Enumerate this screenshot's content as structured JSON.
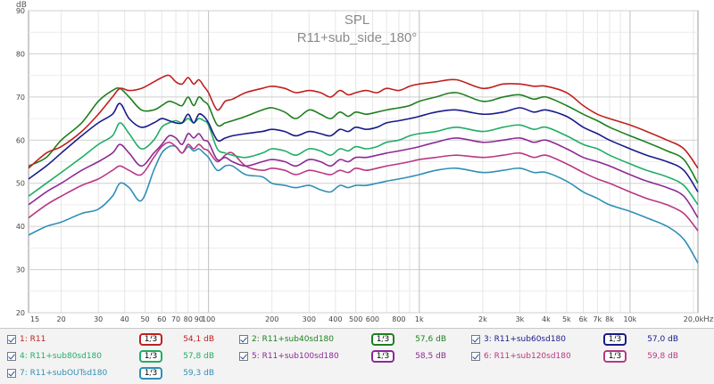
{
  "chart_data": {
    "type": "line",
    "title": "SPL",
    "subtitle": "R11+sub_side_180°",
    "ylabel": "dB",
    "xlabel": "Hz",
    "x_scale": "log",
    "xlim": [
      14,
      21000
    ],
    "ylim": [
      20,
      90
    ],
    "y_ticks": [
      20,
      30,
      40,
      50,
      60,
      70,
      80,
      90
    ],
    "x_ticks": [
      {
        "v": 15,
        "t": "15"
      },
      {
        "v": 20,
        "t": "20"
      },
      {
        "v": 30,
        "t": "30"
      },
      {
        "v": 40,
        "t": "40"
      },
      {
        "v": 50,
        "t": "50"
      },
      {
        "v": 60,
        "t": "60"
      },
      {
        "v": 70,
        "t": "70"
      },
      {
        "v": 80,
        "t": "80"
      },
      {
        "v": 90,
        "t": "90"
      },
      {
        "v": 100,
        "t": "100"
      },
      {
        "v": 200,
        "t": "200"
      },
      {
        "v": 300,
        "t": "300"
      },
      {
        "v": 400,
        "t": "400"
      },
      {
        "v": 500,
        "t": "500"
      },
      {
        "v": 600,
        "t": "600"
      },
      {
        "v": 800,
        "t": "800"
      },
      {
        "v": 1000,
        "t": "1k"
      },
      {
        "v": 2000,
        "t": "2k"
      },
      {
        "v": 3000,
        "t": "3k"
      },
      {
        "v": 4000,
        "t": "4k"
      },
      {
        "v": 5000,
        "t": "5k"
      },
      {
        "v": 6000,
        "t": "6k"
      },
      {
        "v": 7000,
        "t": "7k"
      },
      {
        "v": 8000,
        "t": "8k"
      },
      {
        "v": 10000,
        "t": "10k"
      },
      {
        "v": 20000,
        "t": "20,0k"
      }
    ],
    "grid": true,
    "x": [
      14,
      17,
      20,
      25,
      30,
      35,
      38,
      42,
      48,
      55,
      60,
      65,
      70,
      75,
      80,
      85,
      90,
      95,
      100,
      110,
      120,
      130,
      150,
      180,
      200,
      230,
      260,
      300,
      340,
      380,
      420,
      460,
      500,
      560,
      630,
      700,
      800,
      900,
      1000,
      1200,
      1500,
      2000,
      2500,
      3000,
      3500,
      4000,
      5000,
      6000,
      7000,
      8000,
      10000,
      12000,
      15000,
      18000,
      21000
    ],
    "series": [
      {
        "name": "1: R11",
        "color": "#c0201e",
        "level": "54,1 dB",
        "values": [
          53.5,
          57,
          58.5,
          62,
          66,
          70,
          72,
          71.5,
          72,
          73.5,
          74.5,
          75,
          73.5,
          73,
          74.5,
          73,
          74,
          72.5,
          71,
          67,
          69,
          69.5,
          71,
          72,
          72.5,
          72,
          71,
          71.5,
          71,
          70,
          71.5,
          70.5,
          71,
          71.5,
          71,
          72,
          71.5,
          72.5,
          73,
          73.5,
          74,
          72,
          73,
          73,
          72.5,
          72.5,
          71,
          68,
          66,
          65,
          63.5,
          62,
          60,
          58,
          53.5
        ]
      },
      {
        "name": "2: R11+sub40sd180",
        "color": "#1f7f1f",
        "level": "57,6 dB",
        "values": [
          54,
          56,
          60,
          64,
          69,
          71.5,
          72,
          70,
          67,
          67,
          68,
          69,
          68.5,
          68,
          70,
          68,
          70,
          69,
          68,
          63.5,
          64,
          64.5,
          65.5,
          67,
          67.5,
          66.5,
          65,
          67,
          66,
          65,
          66.5,
          65.5,
          66.5,
          66,
          66.5,
          67,
          67.5,
          68,
          69,
          70,
          71,
          69,
          70,
          70.5,
          69.5,
          70,
          68,
          66,
          64.5,
          63,
          61,
          59.5,
          57.5,
          55.5,
          50
        ]
      },
      {
        "name": "3: R11+sub60sd180",
        "color": "#1a1a8c",
        "level": "57,0 dB",
        "values": [
          51,
          54,
          57,
          61,
          64,
          66,
          68.5,
          65,
          63,
          64,
          65,
          64.5,
          64,
          64,
          66,
          64,
          66,
          65.5,
          64,
          60,
          60.5,
          61,
          61.5,
          62,
          62.5,
          62,
          61,
          62,
          61.5,
          61,
          62.5,
          62,
          63,
          62.5,
          63,
          64,
          64.5,
          65,
          65.5,
          66.5,
          67,
          66,
          66.5,
          67.5,
          66.5,
          67,
          65.5,
          63,
          61.5,
          60,
          58,
          56.5,
          55,
          53,
          48
        ]
      },
      {
        "name": "4: R11+sub80sd180",
        "color": "#1fae66",
        "level": "57,8 dB",
        "values": [
          47,
          50,
          52.5,
          56,
          59,
          61,
          64,
          61.5,
          58,
          60,
          63,
          64,
          64.5,
          64,
          65,
          64,
          65,
          64.5,
          63.5,
          58,
          57,
          56.5,
          56,
          57,
          58,
          57.5,
          56.5,
          58,
          57.5,
          56.5,
          58,
          57.5,
          58.5,
          58,
          58.5,
          59.5,
          60,
          61,
          61.5,
          62,
          63,
          62,
          63,
          63.5,
          62.5,
          63,
          61,
          59,
          58,
          56.5,
          54.5,
          53,
          51.5,
          49.5,
          45
        ]
      },
      {
        "name": "5: R11+sub100sd180",
        "color": "#8c2a96",
        "level": "58,5 dB",
        "values": [
          45,
          48,
          50,
          53,
          55,
          57,
          59,
          57,
          54,
          57,
          59,
          61,
          60.5,
          59,
          61.5,
          60.5,
          61.5,
          60,
          59.5,
          55.5,
          56,
          55,
          54,
          55,
          55.5,
          55,
          54,
          55.5,
          55,
          54,
          55.5,
          55,
          56,
          56,
          56.5,
          57,
          57.5,
          58,
          58.5,
          59.5,
          60.5,
          59.5,
          60,
          60.5,
          59.5,
          60,
          58,
          56,
          55,
          54,
          52,
          50.5,
          49,
          47,
          42
        ]
      },
      {
        "name": "6: R11+sub120sd180",
        "color": "#b83882",
        "level": "59,8 dB",
        "values": [
          42,
          45,
          47,
          49.5,
          51,
          53,
          54,
          53,
          52,
          56,
          58.5,
          59.5,
          58.5,
          57,
          59,
          58,
          59,
          58,
          57.5,
          55,
          56.5,
          57,
          54,
          53,
          53.5,
          53,
          52,
          53,
          52.5,
          52,
          53,
          52.5,
          53.5,
          53,
          53.5,
          54,
          54.5,
          55,
          55.5,
          56,
          56.5,
          56,
          56.5,
          57,
          56,
          56.5,
          54.5,
          52.5,
          51,
          50,
          48,
          46.5,
          45,
          43,
          39
        ]
      },
      {
        "name": "7: R11+subOUTsd180",
        "color": "#2f8fb6",
        "level": "59,3 dB",
        "values": [
          38,
          40,
          41,
          43,
          44,
          47,
          50,
          49,
          46,
          53,
          57,
          58.5,
          58.5,
          57,
          58.5,
          57.5,
          58,
          57,
          56,
          53,
          54,
          54,
          52,
          51.5,
          50,
          49.5,
          49,
          49.5,
          48.5,
          48,
          49.5,
          49,
          49.5,
          49.5,
          50,
          50.5,
          51,
          51.5,
          52,
          53,
          53.5,
          52.5,
          53,
          53.5,
          52.5,
          52.5,
          50.5,
          48,
          46.5,
          45,
          43.5,
          42,
          40,
          37,
          31.5
        ]
      }
    ]
  },
  "smoothing_label": "1/3"
}
